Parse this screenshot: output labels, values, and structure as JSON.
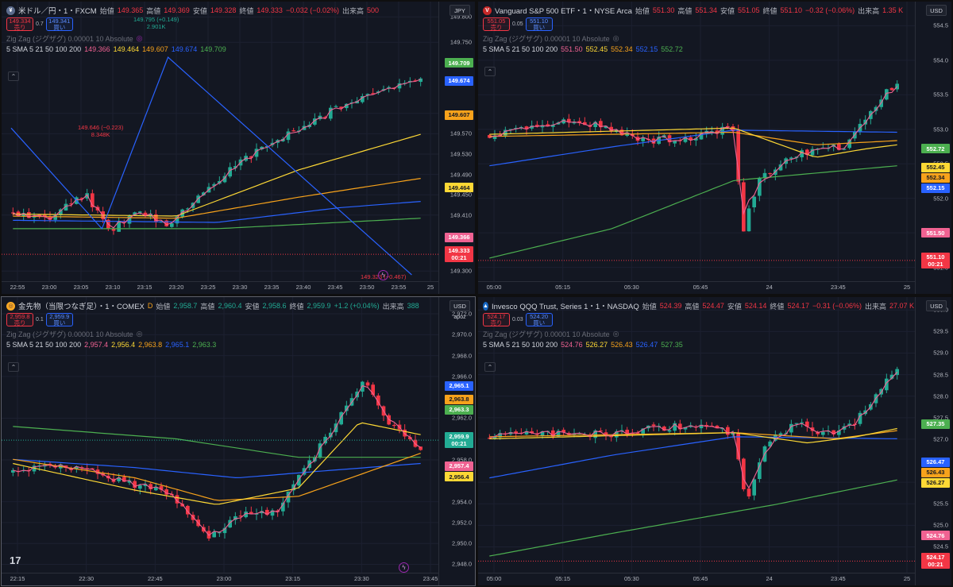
{
  "panes": [
    {
      "id": "usdjpy",
      "icon": "¥",
      "icon_color": "#5b6b8c",
      "symbol": "米ドル／円・1・FXCM",
      "ohlc": {
        "open_label": "始値",
        "open": "149.365",
        "high_label": "高値",
        "high": "149.369",
        "low_label": "安値",
        "low": "149.328",
        "close_label": "終値",
        "close": "149.333",
        "change": "−0.032 (−0.02%)",
        "vol_label": "出来高",
        "vol": "500"
      },
      "sell_price": "149.334",
      "sell_label": "売り",
      "buy_price": "149.341",
      "buy_label": "買い",
      "spread": "0.7",
      "indicator1": "Zig Zag (ジグザグ) 0.00001 10 Absolute",
      "sma_label": "5 SMA 5 21 50 100 200",
      "sma_values": [
        "149.366",
        "149.464",
        "149.607",
        "149.674",
        "149.709"
      ],
      "currency": "JPY",
      "subbadge": "",
      "y_ticks": [
        "149.800",
        "149.750",
        "149.610",
        "149.570",
        "149.530",
        "149.490",
        "149.450",
        "149.410",
        "149.300"
      ],
      "y_min": 149.28,
      "y_max": 149.83,
      "x_ticks": [
        "22:55",
        "23:00",
        "23:05",
        "23:10",
        "23:15",
        "23:20",
        "23:25",
        "23:30",
        "23:35",
        "23:40",
        "23:45",
        "23:50",
        "23:55",
        "25"
      ],
      "price_tags": [
        {
          "value": "149.709",
          "num": 149.709,
          "color": "#4caf50"
        },
        {
          "value": "149.674",
          "num": 149.674,
          "color": "#2962ff"
        },
        {
          "value": "149.607",
          "num": 149.607,
          "color": "#f7a21b"
        },
        {
          "value": "149.464",
          "num": 149.464,
          "color": "#fdd835"
        },
        {
          "value": "149.366",
          "num": 149.366,
          "color": "#f06292"
        },
        {
          "value": "149.333",
          "num": 149.333,
          "color": "#f23645",
          "countdown": "00:21"
        }
      ],
      "annotations": [
        {
          "text": "149.795 (+0.149)",
          "text2": "2.901K",
          "color": "#22ab94"
        },
        {
          "text": "149.646 (−0.223)",
          "text2": "8.348K",
          "color": "#f23645"
        },
        {
          "text": "149.323 (−0.467)",
          "text2": "",
          "color": "#f23645"
        }
      ]
    },
    {
      "id": "voo",
      "icon": "V",
      "icon_color": "#c62828",
      "symbol": "Vanguard S&P 500 ETF・1・NYSE Arca",
      "ohlc": {
        "open_label": "始値",
        "open": "551.30",
        "high_label": "高値",
        "high": "551.34",
        "low_label": "安値",
        "low": "551.05",
        "close_label": "終値",
        "close": "551.10",
        "change": "−0.32 (−0.06%)",
        "vol_label": "出来高",
        "vol": "1.35 K"
      },
      "sell_price": "551.05",
      "sell_label": "売り",
      "buy_price": "551.10",
      "buy_label": "買い",
      "spread": "0.05",
      "indicator1": "Zig Zag (ジグザグ) 0.00001 10 Absolute",
      "sma_label": "5 SMA 5 21 50 100 200",
      "sma_values": [
        "551.50",
        "552.45",
        "552.34",
        "552.15",
        "552.72"
      ],
      "currency": "USD",
      "subbadge": "",
      "y_ticks": [
        "554.5",
        "554.0",
        "553.5",
        "553.0",
        "552.5",
        "552.0",
        "551.5",
        "551.0"
      ],
      "y_min": 550.8,
      "y_max": 554.85,
      "x_ticks": [
        "05:00",
        "05:15",
        "05:30",
        "05:45",
        "24",
        "23:45",
        "25"
      ],
      "price_tags": [
        {
          "value": "552.72",
          "num": 552.72,
          "color": "#4caf50"
        },
        {
          "value": "552.45",
          "num": 552.45,
          "color": "#fdd835"
        },
        {
          "value": "552.34",
          "num": 552.34,
          "color": "#f7a21b"
        },
        {
          "value": "552.15",
          "num": 552.15,
          "color": "#2962ff"
        },
        {
          "value": "551.50",
          "num": 551.5,
          "color": "#f06292"
        },
        {
          "value": "551.10",
          "num": 551.1,
          "color": "#f23645",
          "countdown": "00:21"
        }
      ],
      "annotations": []
    },
    {
      "id": "gold",
      "icon": "◎",
      "icon_color": "#f9a825",
      "symbol": "金先物（当限つなぎ足）・1・COMEX",
      "ohlc": {
        "open_label": "始値",
        "open": "2,958.7",
        "high_label": "高値",
        "high": "2,960.4",
        "low_label": "安値",
        "low": "2,958.6",
        "close_label": "終値",
        "close": "2,959.9",
        "change": "+1.2 (+0.04%)",
        "vol_label": "出来高",
        "vol": "388"
      },
      "sell_price": "2,959.8",
      "sell_label": "売り",
      "buy_price": "2,959.9",
      "buy_label": "買い",
      "spread": "0.1",
      "indicator1": "Zig Zag (ジグザグ) 0.00001 10 Absolute",
      "sma_label": "5 SMA 5 21 50 100 200",
      "sma_values": [
        "2,957.4",
        "2,956.4",
        "2,963.8",
        "2,965.1",
        "2,963.3"
      ],
      "currency": "USD",
      "subbadge": "apoz",
      "y_ticks": [
        "2,972.0",
        "2,970.0",
        "2,968.0",
        "2,966.0",
        "2,962.0",
        "2,958.0",
        "2,954.0",
        "2,952.0",
        "2,950.0",
        "2,948.0"
      ],
      "y_min": 2947.2,
      "y_max": 2973.6,
      "x_ticks": [
        "22:15",
        "22:30",
        "22:45",
        "23:00",
        "23:15",
        "23:30",
        "23:45"
      ],
      "price_tags": [
        {
          "value": "2,965.1",
          "num": 2965.1,
          "color": "#2962ff"
        },
        {
          "value": "2,963.8",
          "num": 2963.8,
          "color": "#f7a21b"
        },
        {
          "value": "2,963.3",
          "num": 2963.3,
          "color": "#4caf50"
        },
        {
          "value": "2,959.9",
          "num": 2959.9,
          "color": "#22ab94",
          "countdown": "00:21"
        },
        {
          "value": "2,957.4",
          "num": 2957.4,
          "color": "#f06292"
        },
        {
          "value": "2,956.4",
          "num": 2956.4,
          "color": "#fdd835"
        }
      ],
      "annotations": []
    },
    {
      "id": "qqq",
      "icon": "▲",
      "icon_color": "#1565c0",
      "symbol": "Invesco QQQ Trust, Series 1・1・NASDAQ",
      "ohlc": {
        "open_label": "始値",
        "open": "524.39",
        "high_label": "高値",
        "high": "524.47",
        "low_label": "安値",
        "low": "524.14",
        "close_label": "終値",
        "close": "524.17",
        "change": "−0.31 (−0.06%)",
        "vol_label": "出来高",
        "vol": "27.07 K"
      },
      "sell_price": "524.17",
      "sell_label": "売り",
      "buy_price": "524.20",
      "buy_label": "買い",
      "spread": "0.03",
      "indicator1": "Zig Zag (ジグザグ) 0.00001 10 Absolute",
      "sma_label": "5 SMA 5 21 50 100 200",
      "sma_values": [
        "524.76",
        "526.27",
        "526.43",
        "526.47",
        "527.35"
      ],
      "currency": "USD",
      "subbadge": "",
      "y_ticks": [
        "530.0",
        "529.5",
        "529.0",
        "528.5",
        "528.0",
        "527.5",
        "527.0",
        "526.0",
        "525.5",
        "525.0",
        "524.5"
      ],
      "y_min": 523.9,
      "y_max": 530.3,
      "x_ticks": [
        "05:00",
        "05:15",
        "05:30",
        "05:45",
        "24",
        "23:45",
        "25"
      ],
      "price_tags": [
        {
          "value": "527.35",
          "num": 527.35,
          "color": "#4caf50"
        },
        {
          "value": "526.47",
          "num": 526.47,
          "color": "#2962ff"
        },
        {
          "value": "526.43",
          "num": 526.43,
          "color": "#f7a21b"
        },
        {
          "value": "526.27",
          "num": 526.27,
          "color": "#fdd835"
        },
        {
          "value": "524.76",
          "num": 524.76,
          "color": "#f06292"
        },
        {
          "value": "524.17",
          "num": 524.17,
          "color": "#f23645",
          "countdown": "00:21"
        }
      ],
      "annotations": []
    }
  ],
  "logo_text": "17",
  "colors": {
    "up": "#22ab94",
    "down": "#f23645",
    "sma5": "#f06292",
    "sma21": "#fdd835",
    "sma50": "#f7a21b",
    "sma100": "#2962ff",
    "sma200": "#4caf50",
    "zigzag": "#2962ff"
  }
}
